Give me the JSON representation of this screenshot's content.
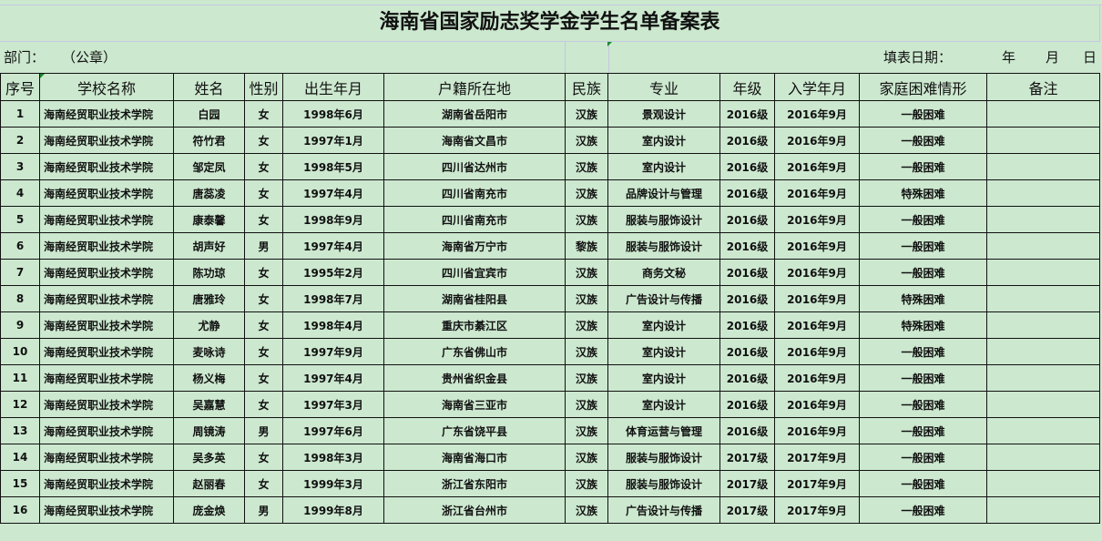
{
  "title": "海南省国家励志奖学金学生名单备案表",
  "dept_label": "部门：",
  "seal_label": "（公章）",
  "date_label": "填表日期：",
  "date_year": "年",
  "date_month": "月",
  "date_day": "日",
  "columns": [
    "序号",
    "学校名称",
    "姓名",
    "性别",
    "出生年月",
    "户籍所在地",
    "民族",
    "专业",
    "年级",
    "入学年月",
    "家庭困难情形",
    "备注"
  ],
  "rows": [
    [
      "1",
      "海南经贸职业技术学院",
      "白园",
      "女",
      "1998年6月",
      "湖南省岳阳市",
      "汉族",
      "景观设计",
      "2016级",
      "2016年9月",
      "一般困难",
      ""
    ],
    [
      "2",
      "海南经贸职业技术学院",
      "符竹君",
      "女",
      "1997年1月",
      "海南省文昌市",
      "汉族",
      "室内设计",
      "2016级",
      "2016年9月",
      "一般困难",
      ""
    ],
    [
      "3",
      "海南经贸职业技术学院",
      "邹定凤",
      "女",
      "1998年5月",
      "四川省达州市",
      "汉族",
      "室内设计",
      "2016级",
      "2016年9月",
      "一般困难",
      ""
    ],
    [
      "4",
      "海南经贸职业技术学院",
      "唐蕊凌",
      "女",
      "1997年4月",
      "四川省南充市",
      "汉族",
      "品牌设计与管理",
      "2016级",
      "2016年9月",
      "特殊困难",
      ""
    ],
    [
      "5",
      "海南经贸职业技术学院",
      "康泰馨",
      "女",
      "1998年9月",
      "四川省南充市",
      "汉族",
      "服装与服饰设计",
      "2016级",
      "2016年9月",
      "一般困难",
      ""
    ],
    [
      "6",
      "海南经贸职业技术学院",
      "胡声好",
      "男",
      "1997年4月",
      "海南省万宁市",
      "黎族",
      "服装与服饰设计",
      "2016级",
      "2016年9月",
      "一般困难",
      ""
    ],
    [
      "7",
      "海南经贸职业技术学院",
      "陈功琼",
      "女",
      "1995年2月",
      "四川省宜宾市",
      "汉族",
      "商务文秘",
      "2016级",
      "2016年9月",
      "一般困难",
      ""
    ],
    [
      "8",
      "海南经贸职业技术学院",
      "唐雅玲",
      "女",
      "1998年7月",
      "湖南省桂阳县",
      "汉族",
      "广告设计与传播",
      "2016级",
      "2016年9月",
      "特殊困难",
      ""
    ],
    [
      "9",
      "海南经贸职业技术学院",
      "尤静",
      "女",
      "1998年4月",
      "重庆市綦江区",
      "汉族",
      "室内设计",
      "2016级",
      "2016年9月",
      "特殊困难",
      ""
    ],
    [
      "10",
      "海南经贸职业技术学院",
      "麦咏诗",
      "女",
      "1997年9月",
      "广东省佛山市",
      "汉族",
      "室内设计",
      "2016级",
      "2016年9月",
      "一般困难",
      ""
    ],
    [
      "11",
      "海南经贸职业技术学院",
      "杨义梅",
      "女",
      "1997年4月",
      "贵州省织金县",
      "汉族",
      "室内设计",
      "2016级",
      "2016年9月",
      "一般困难",
      ""
    ],
    [
      "12",
      "海南经贸职业技术学院",
      "吴嘉慧",
      "女",
      "1997年3月",
      "海南省三亚市",
      "汉族",
      "室内设计",
      "2016级",
      "2016年9月",
      "一般困难",
      ""
    ],
    [
      "13",
      "海南经贸职业技术学院",
      "周镜涛",
      "男",
      "1997年6月",
      "广东省饶平县",
      "汉族",
      "体育运营与管理",
      "2016级",
      "2016年9月",
      "一般困难",
      ""
    ],
    [
      "14",
      "海南经贸职业技术学院",
      "吴多英",
      "女",
      "1998年3月",
      "海南省海口市",
      "汉族",
      "服装与服饰设计",
      "2017级",
      "2017年9月",
      "一般困难",
      ""
    ],
    [
      "15",
      "海南经贸职业技术学院",
      "赵丽春",
      "女",
      "1999年3月",
      "浙江省东阳市",
      "汉族",
      "服装与服饰设计",
      "2017级",
      "2017年9月",
      "一般困难",
      ""
    ],
    [
      "16",
      "海南经贸职业技术学院",
      "庞金焕",
      "男",
      "1999年8月",
      "浙江省台州市",
      "汉族",
      "广告设计与传播",
      "2017级",
      "2017年9月",
      "一般困难",
      ""
    ]
  ]
}
